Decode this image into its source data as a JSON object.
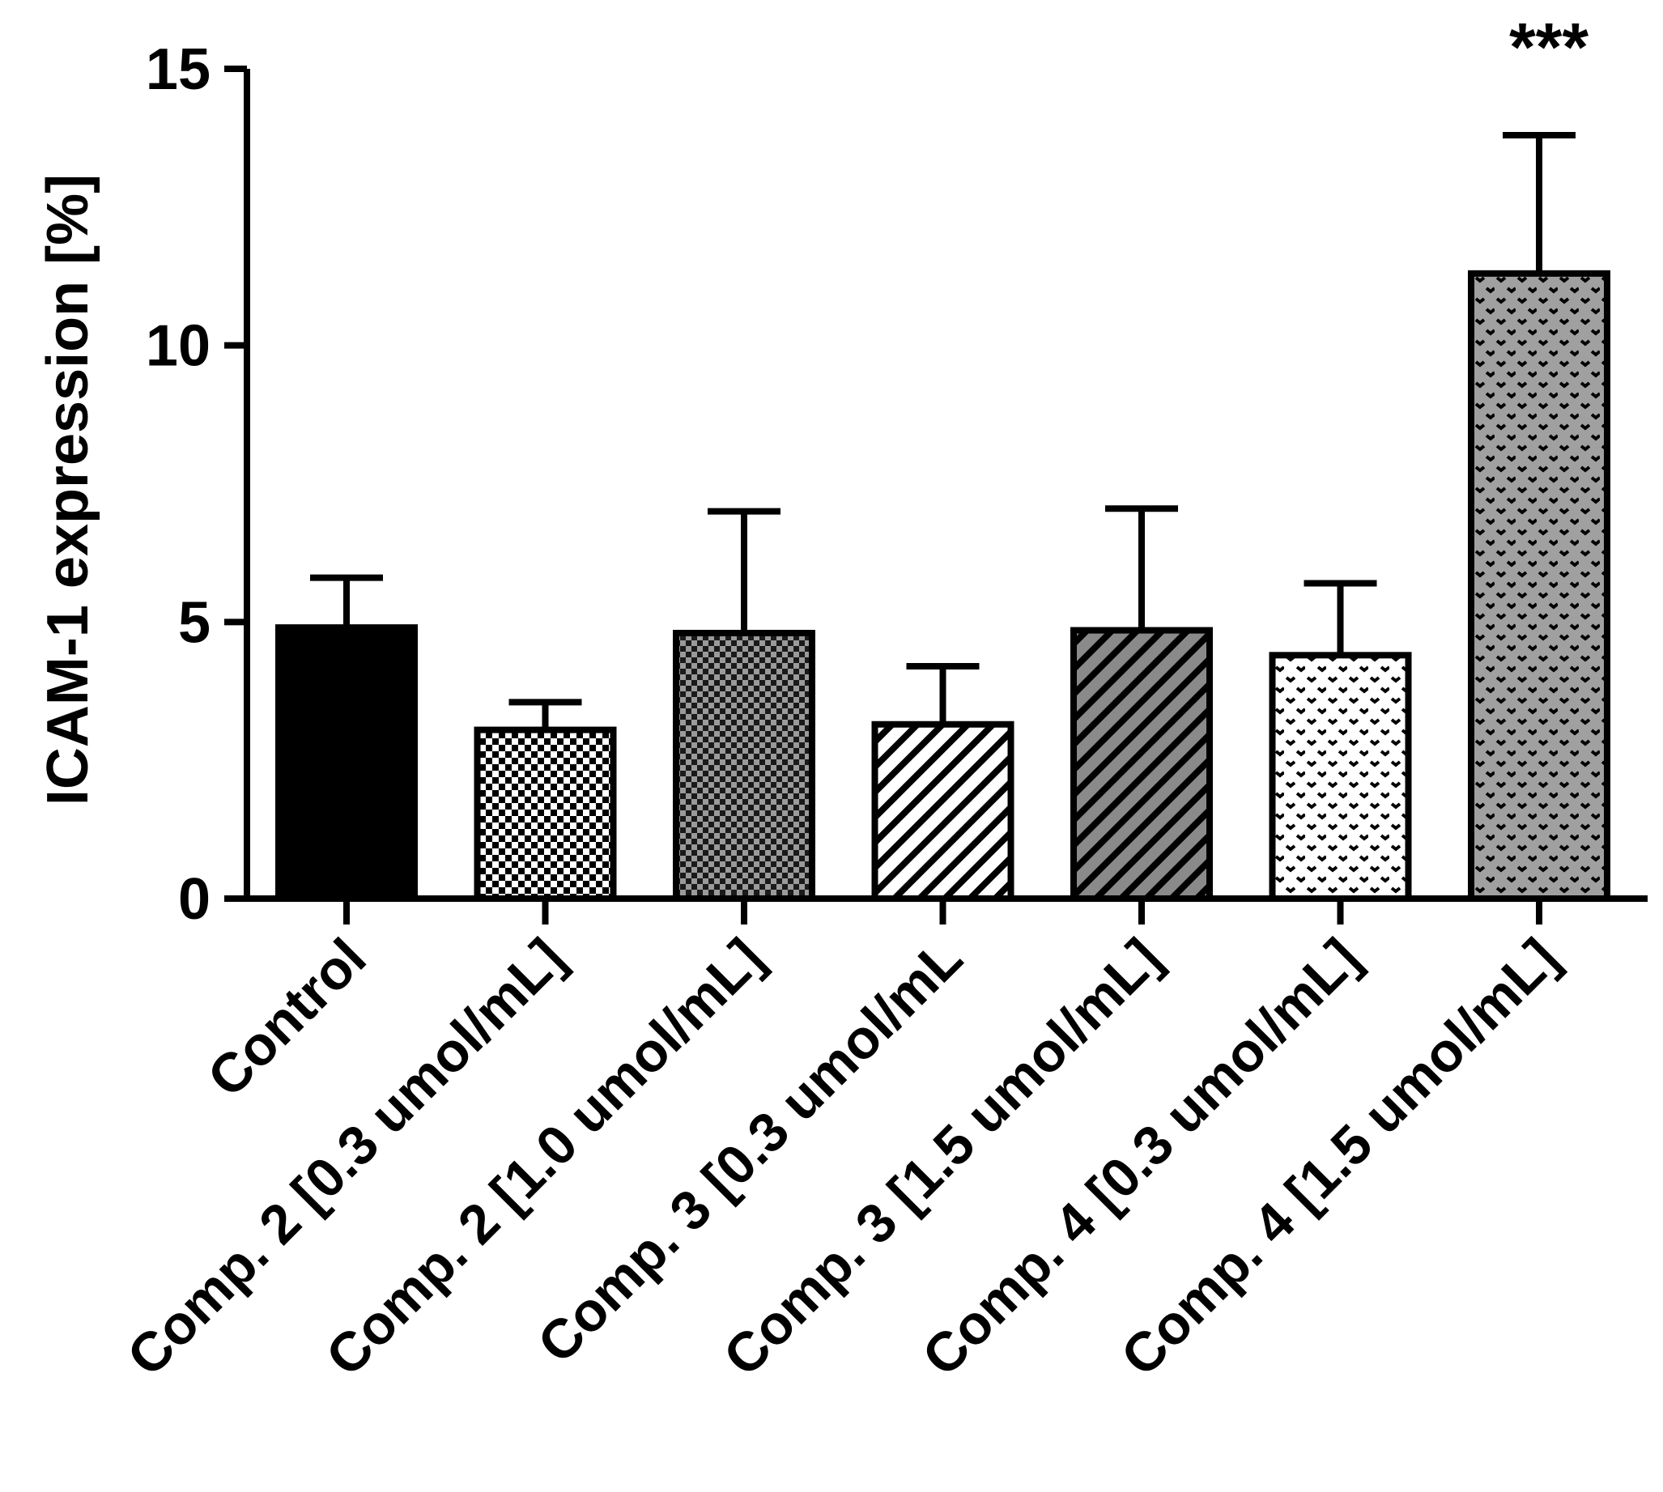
{
  "chart_data": {
    "type": "bar",
    "title": "",
    "xlabel": "",
    "ylabel": "ICAM-1 expression [%]",
    "ylim": [
      0,
      15
    ],
    "yticks": [
      0,
      5,
      10,
      15
    ],
    "grid": false,
    "categories": [
      "Control",
      "Comp. 2 [0.3 umol/mL]",
      "Comp. 2 [1.0 umol/mL]",
      "Comp. 3 [0.3 umol/mL",
      "Comp. 3 [1.5 umol/mL]",
      "Comp. 4 [0.3 umol/mL]",
      "Comp. 4 [1.5 umol/mL]"
    ],
    "values": [
      4.9,
      3.05,
      4.8,
      3.15,
      4.85,
      4.4,
      11.3
    ],
    "errors": [
      0.9,
      0.5,
      2.2,
      1.05,
      2.2,
      1.3,
      2.5
    ],
    "fills": [
      "solid-black",
      "checker-fine",
      "checker-dark",
      "diagonal-light",
      "diagonal-dark",
      "dots-light",
      "dots-dark"
    ],
    "annotations": [
      {
        "category": "Comp. 4 [1.5 umol/mL]",
        "text": "***"
      }
    ],
    "colors": {
      "axis": "#000000",
      "bar_outline": "#000000"
    }
  }
}
